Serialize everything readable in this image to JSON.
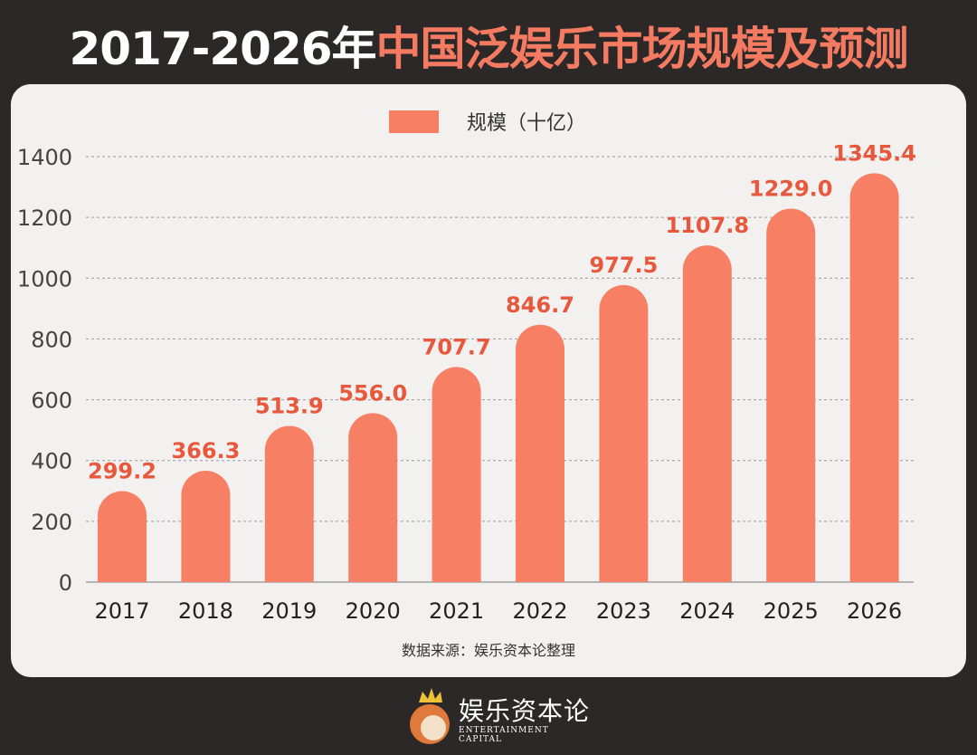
{
  "title": {
    "part1": "2017-2026年",
    "part2": "中国泛娱乐市场规模及预测"
  },
  "chart_data": {
    "type": "bar",
    "title": "2017-2026年中国泛娱乐市场规模及预测",
    "categories": [
      "2017",
      "2018",
      "2019",
      "2020",
      "2021",
      "2022",
      "2023",
      "2024",
      "2025",
      "2026"
    ],
    "series": [
      {
        "name": "规模（十亿）",
        "values": [
          299.2,
          366.3,
          513.9,
          556.0,
          707.7,
          846.7,
          977.5,
          1107.8,
          1229.0,
          1345.4
        ]
      }
    ],
    "data_labels": [
      "299.2",
      "366.3",
      "513.9",
      "556.0",
      "707.7",
      "846.7",
      "977.5",
      "1107.8",
      "1229.0",
      "1345.4"
    ],
    "yticks": [
      0,
      200,
      400,
      600,
      800,
      1000,
      1200,
      1400
    ],
    "ylim": [
      0,
      1400
    ],
    "grid": true,
    "legend": "top-center",
    "source": "数据来源：娱乐资本论整理",
    "colors": {
      "bar": "#f77f63",
      "label": "#e8583c",
      "background": "#2b2827",
      "card": "#f2f1f0"
    }
  },
  "logo": {
    "name": "娱乐资本论",
    "subtitle": "ENTERTAINMENT CAPITAL"
  }
}
